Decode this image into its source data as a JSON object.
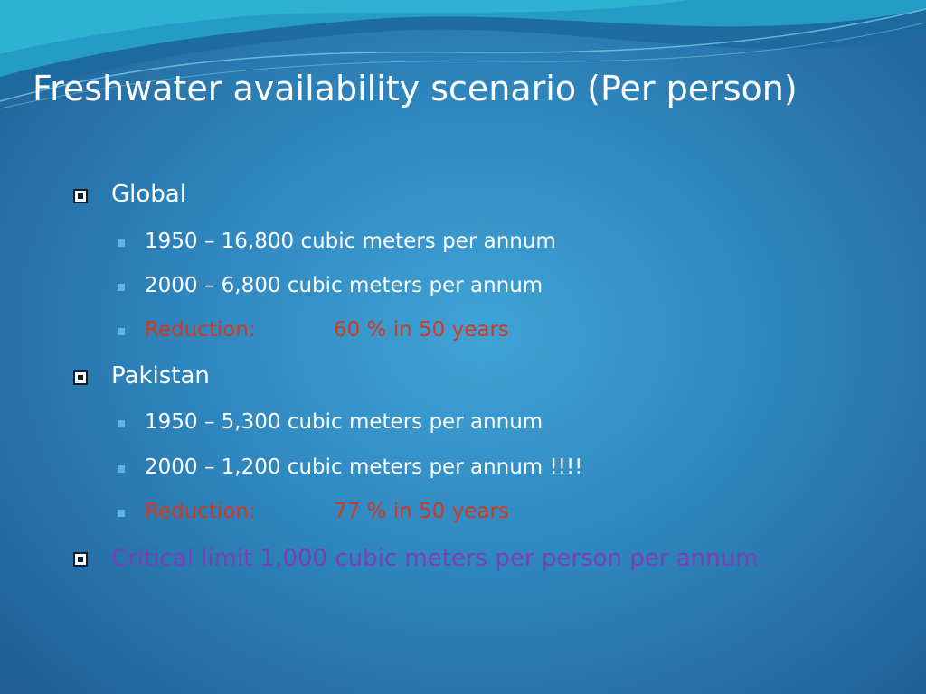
{
  "title": "Freshwater availability scenario (Per person)",
  "sections": [
    {
      "label": "Global",
      "items": [
        {
          "text": "1950 – 16,800 cubic meters per annum"
        },
        {
          "text": "2000 – 6,800 cubic meters per annum"
        },
        {
          "label": "Reduction:",
          "value": "60 % in 50 years"
        }
      ]
    },
    {
      "label": "Pakistan",
      "items": [
        {
          "text": "1950 – 5,300 cubic meters per annum"
        },
        {
          "text": "2000 – 1,200 cubic meters per annum !!!!"
        },
        {
          "label": "Reduction:",
          "value": "77 % in 50 years"
        }
      ]
    }
  ],
  "note": "Critical limit 1,000 cubic meters per person per annum"
}
